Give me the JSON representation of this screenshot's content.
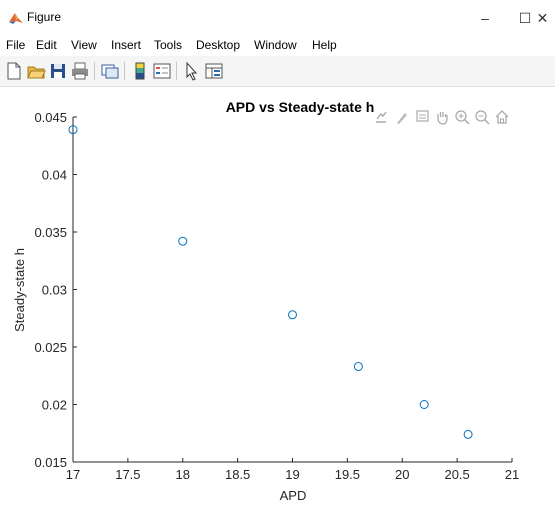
{
  "window": {
    "title": "Figure",
    "controls": [
      "–",
      "☐",
      "✕"
    ]
  },
  "menu": [
    "File",
    "Edit",
    "View",
    "Insert",
    "Tools",
    "Desktop",
    "Window",
    "Help"
  ],
  "toolbar_icons": [
    "new-figure-icon",
    "open-file-icon",
    "save-icon",
    "print-icon",
    "link-plot-icon",
    "colorbar-icon",
    "legend-icon",
    "edit-plot-icon",
    "property-inspector-icon"
  ],
  "axes_toolbar_icons": [
    "export-icon",
    "brush-icon",
    "datatip-icon",
    "pan-icon",
    "zoom-in-icon",
    "zoom-out-icon",
    "home-icon"
  ],
  "colors": {
    "marker": "#0072bd",
    "axis": "#262626",
    "grid": "#d9d9d9"
  },
  "chart_data": {
    "type": "scatter",
    "title": "APD vs Steady-state h",
    "xlabel": "APD",
    "ylabel": "Steady-state h",
    "xlim": [
      17,
      21
    ],
    "ylim": [
      0.015,
      0.045
    ],
    "xticks": [
      "17",
      "17.5",
      "18",
      "18.5",
      "19",
      "19.5",
      "20",
      "20.5",
      "21"
    ],
    "yticks": [
      "0.015",
      "0.02",
      "0.025",
      "0.03",
      "0.035",
      "0.04",
      "0.045"
    ],
    "marker": "circle",
    "grid": false,
    "points": [
      {
        "x": 17.0,
        "y": 0.0439
      },
      {
        "x": 18.0,
        "y": 0.0342
      },
      {
        "x": 19.0,
        "y": 0.0278
      },
      {
        "x": 19.6,
        "y": 0.0233
      },
      {
        "x": 20.2,
        "y": 0.02
      },
      {
        "x": 20.6,
        "y": 0.0174
      }
    ]
  }
}
